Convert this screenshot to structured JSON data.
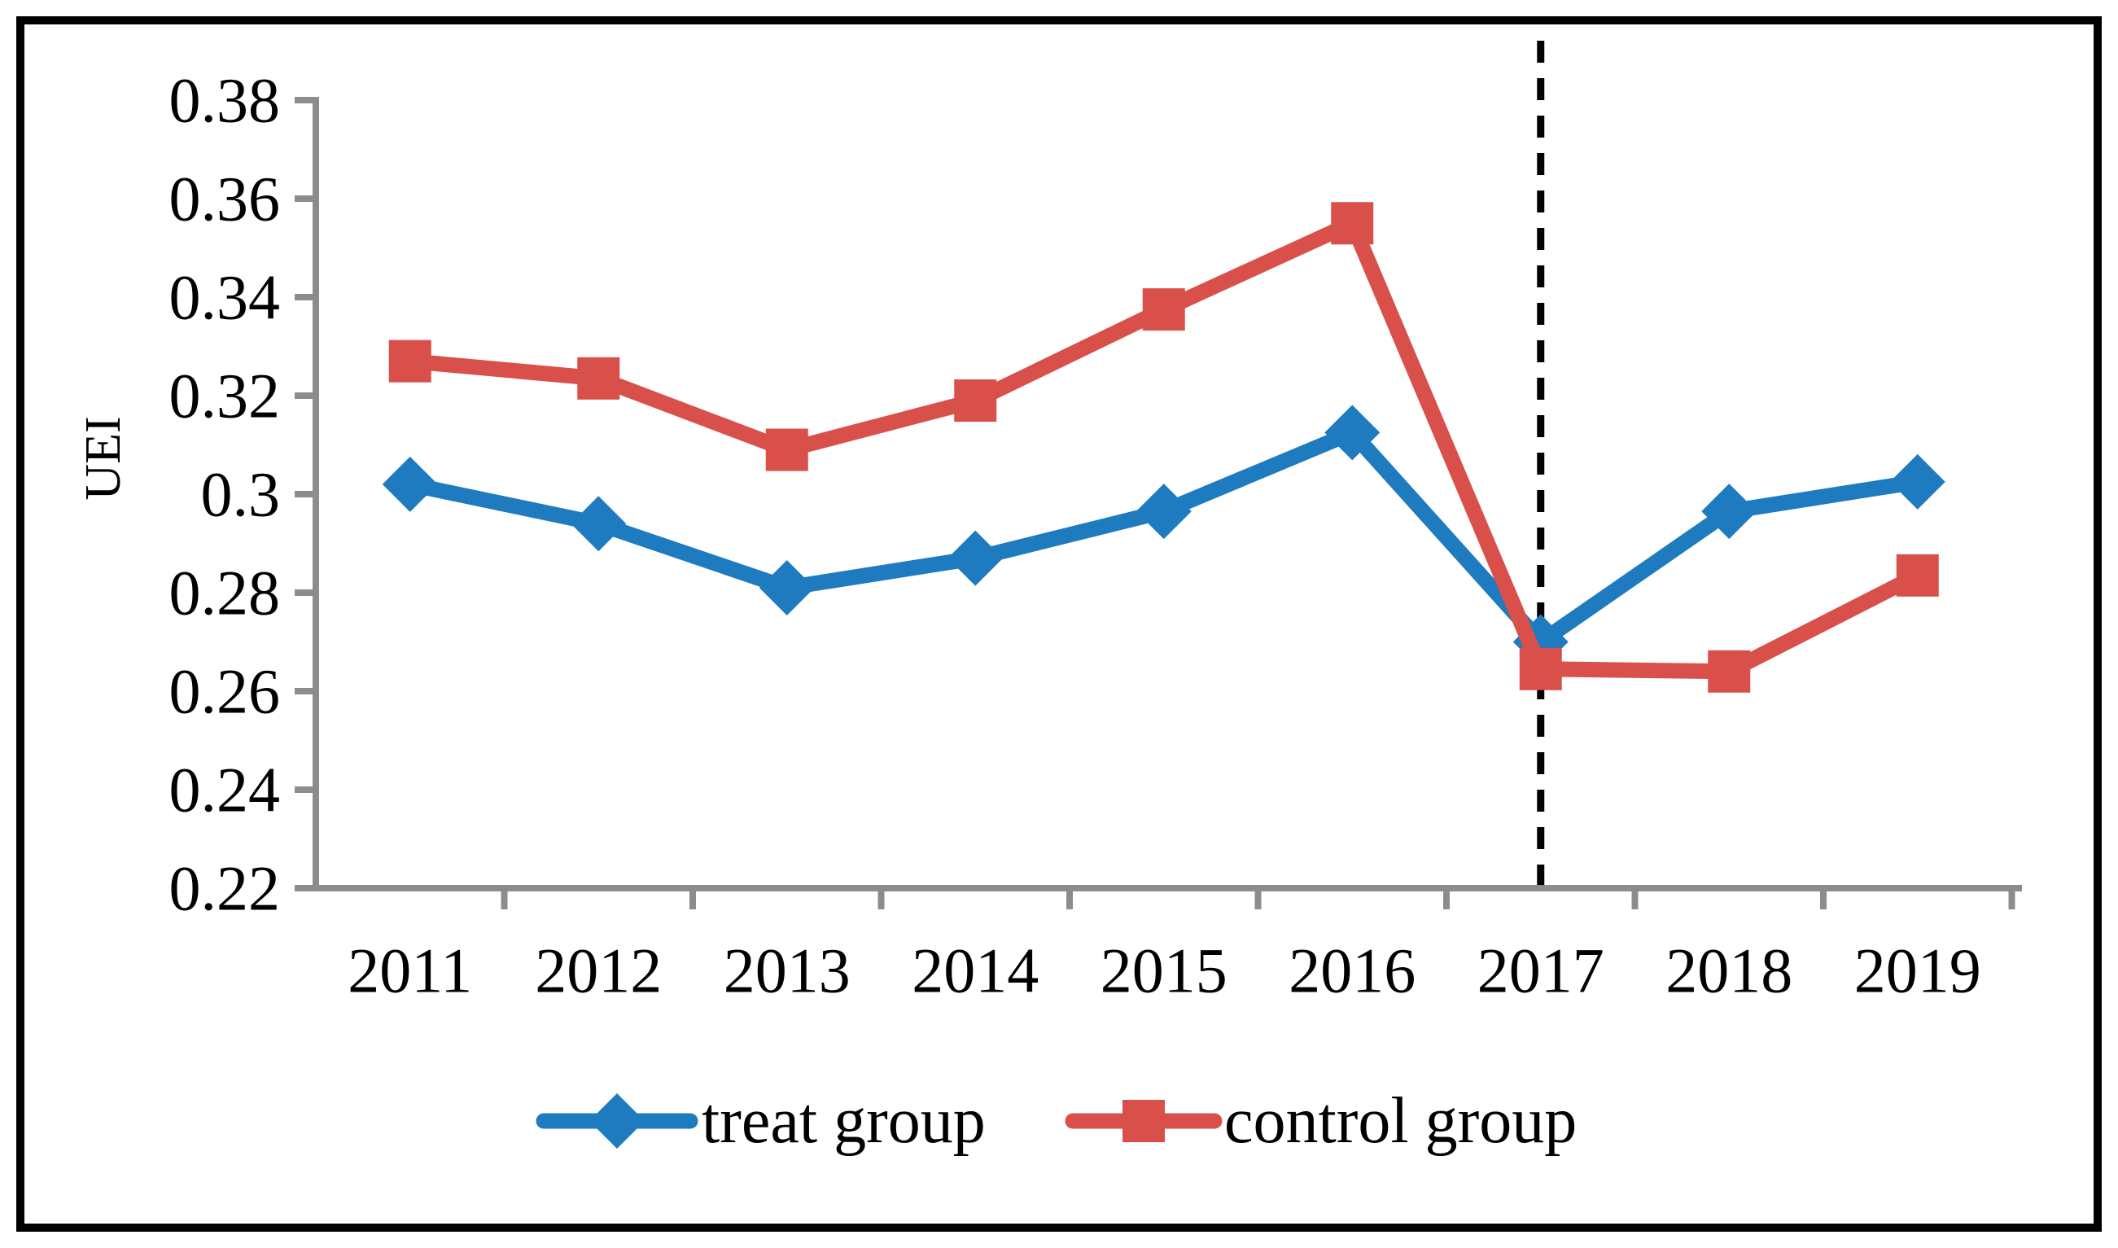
{
  "figure": {
    "background": "#ffffff",
    "frame_color": "#000000",
    "axis_color": "#8C8C8C",
    "text_color": "#000000"
  },
  "chart_data": {
    "type": "line",
    "title": "",
    "xlabel": "",
    "ylabel": "UEI",
    "categories": [
      "2011",
      "2012",
      "2013",
      "2014",
      "2015",
      "2016",
      "2017",
      "2018",
      "2019"
    ],
    "series": [
      {
        "name": "treat group",
        "color": "#1F7BBF",
        "marker": "diamond",
        "values": [
          0.302,
          0.294,
          0.281,
          0.287,
          0.2965,
          0.3125,
          0.27,
          0.2965,
          0.3025
        ]
      },
      {
        "name": "control group",
        "color": "#D9504B",
        "marker": "square",
        "values": [
          0.327,
          0.3235,
          0.309,
          0.319,
          0.3375,
          0.355,
          0.2645,
          0.264,
          0.2835
        ]
      }
    ],
    "ylim": [
      0.22,
      0.38
    ],
    "ytick_step": 0.02,
    "ytick_labels": [
      "0.38",
      "0.36",
      "0.34",
      "0.32",
      "0.3",
      "0.28",
      "0.26",
      "0.24",
      "0.22"
    ],
    "grid": false,
    "legend_position": "bottom",
    "annotations": [
      {
        "type": "vline",
        "at_category": "2017",
        "style": "dashed",
        "color": "#000000"
      }
    ]
  }
}
